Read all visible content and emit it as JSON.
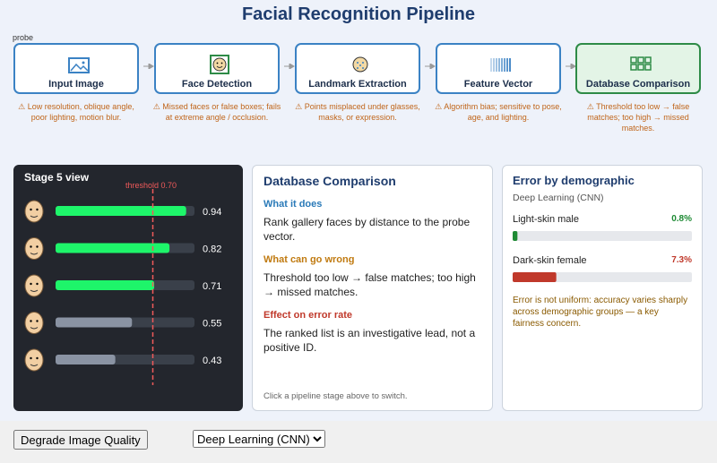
{
  "header": {
    "title": "Facial Recognition Pipeline",
    "probe_label": "probe"
  },
  "stages": [
    {
      "name": "Input Image",
      "warning": "⚠ Low resolution, oblique angle, poor lighting, motion blur."
    },
    {
      "name": "Face Detection",
      "warning": "⚠ Missed faces or false boxes; fails at extreme angle / occlusion."
    },
    {
      "name": "Landmark Extraction",
      "warning": "⚠ Points misplaced under glasses, masks, or expression."
    },
    {
      "name": "Feature Vector",
      "warning": "⚠ Algorithm bias; sensitive to pose, age, and lighting."
    },
    {
      "name": "Database Comparison",
      "warning": "⚠ Threshold too low → false matches; too high → missed matches."
    }
  ],
  "stage_view": {
    "title": "Stage 5 view",
    "threshold": {
      "value": 0.7,
      "label": "threshold 0.70"
    },
    "xlim": [
      0,
      1
    ],
    "scores": [
      0.94,
      0.82,
      0.71,
      0.55,
      0.43
    ]
  },
  "detail": {
    "title": "Database Comparison",
    "sections": [
      {
        "heading": "What it does",
        "text": "Rank gallery faces by distance to the probe vector."
      },
      {
        "heading": "What can go wrong",
        "text": "Threshold too low → false matches; too high → missed matches."
      },
      {
        "heading": "Effect on error rate",
        "text": "The ranked list is an investigative lead, not a positive ID."
      }
    ],
    "footer": "Click a pipeline stage above to switch."
  },
  "error_panel": {
    "title": "Error by demographic",
    "subtitle": "Deep Learning (CNN)",
    "xlim": [
      0,
      30
    ],
    "groups": [
      {
        "name": "Light-skin male",
        "value": 0.8,
        "label": "0.8%",
        "color": "#1e8a34"
      },
      {
        "name": "Dark-skin female",
        "value": 7.3,
        "label": "7.3%",
        "color": "#c0392b"
      }
    ],
    "note": "Error is not uniform: accuracy varies sharply across demographic groups — a key fairness concern."
  },
  "controls": {
    "button": "Degrade Image Quality",
    "model_select": "Deep Learning (CNN)"
  }
}
